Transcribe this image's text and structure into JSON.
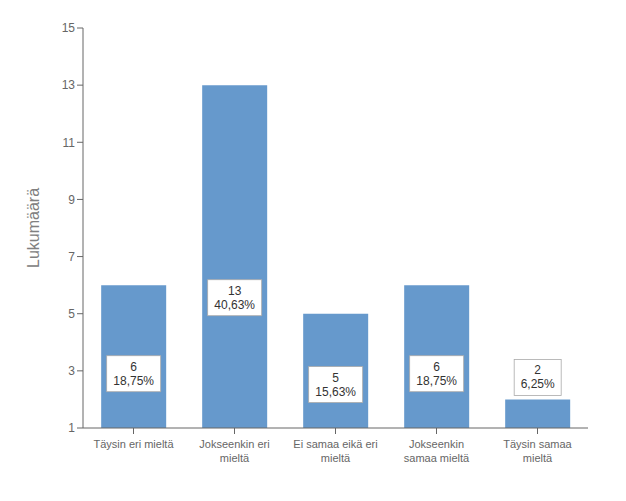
{
  "chart_data": {
    "type": "bar",
    "categories": [
      "Täysin eri mieltä",
      "Jokseenkin eri\nmieltä",
      "Ei samaa eikä eri\nmieltä",
      "Jokseenkin\nsamaa mieltä",
      "Täysin samaa\nmieltä"
    ],
    "values": [
      6,
      13,
      5,
      6,
      2
    ],
    "value_labels": [
      "6\n18,75%",
      "13\n40,63%",
      "5\n15,63%",
      "6\n18,75%",
      "2\n6,25%"
    ],
    "data_labels": true,
    "color": "#6699CC",
    "ylabel": "Lukumäärä",
    "ylim": [
      1,
      15
    ],
    "yticks": [
      1,
      3,
      5,
      7,
      9,
      11,
      13,
      15
    ],
    "grid": false
  }
}
